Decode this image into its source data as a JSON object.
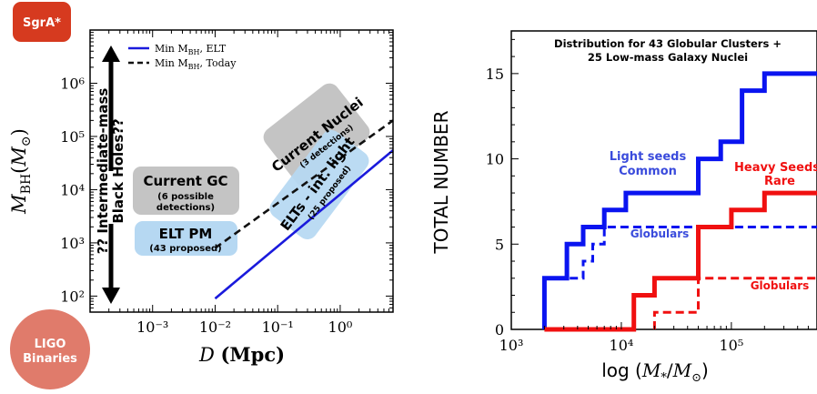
{
  "chart_data": [
    {
      "type": "line",
      "xlabel": "D (Mpc)",
      "ylabel": "M_BH(M_⊙)",
      "xscale": "log",
      "yscale": "log",
      "xlim": [
        0.0001,
        7
      ],
      "ylim": [
        50,
        10000000
      ],
      "xticks": [
        {
          "value": 0.001,
          "label": "10⁻³"
        },
        {
          "value": 0.01,
          "label": "10⁻²"
        },
        {
          "value": 0.1,
          "label": "10⁻¹"
        },
        {
          "value": 1,
          "label": "10⁰"
        }
      ],
      "yticks": [
        {
          "value": 100,
          "label": "10²"
        },
        {
          "value": 1000,
          "label": "10³"
        },
        {
          "value": 10000,
          "label": "10⁴"
        },
        {
          "value": 100000,
          "label": "10⁵"
        },
        {
          "value": 1000000,
          "label": "10⁶"
        }
      ],
      "legend_position": "top-right",
      "series": [
        {
          "name": "Min M_BH, ELT",
          "style": "solid",
          "color": "#1a1adc",
          "x": [
            0.01,
            7
          ],
          "y": [
            90,
            55000
          ]
        },
        {
          "name": "Min M_BH, Today",
          "style": "dashed",
          "color": "#111111",
          "x": [
            0.01,
            7
          ],
          "y": [
            800,
            200000
          ]
        }
      ],
      "annotations": {
        "vertical_arrow_text": "?? Intermediate-mass Black Holes??",
        "regions": [
          {
            "title": "Current GC",
            "subtitle": "(6 possible detections)"
          },
          {
            "title": "ELT PM",
            "subtitle": "(43 proposed)"
          },
          {
            "title": "Current Nuclei",
            "subtitle": "(3 detections)"
          },
          {
            "title": "ELTs - int. light",
            "subtitle": "(25 proposed)"
          }
        ],
        "badges": [
          {
            "label": "SgrA*",
            "color": "#d63a1f"
          },
          {
            "label": "LIGO Binaries",
            "color": "#e07b6b"
          }
        ]
      }
    },
    {
      "type": "line",
      "title": "Distribution for 43 Globular Clusters + 25 Low-mass Galaxy Nuclei",
      "xlabel": "log (M_*/M_⊙)",
      "ylabel": "TOTAL NUMBER",
      "xscale": "log",
      "xlim": [
        1000,
        600000
      ],
      "ylim": [
        0,
        17.5
      ],
      "xticks": [
        {
          "value": 1000,
          "label": "10³"
        },
        {
          "value": 10000,
          "label": "10⁴"
        },
        {
          "value": 100000,
          "label": "10⁵"
        }
      ],
      "yticks": [
        {
          "value": 0,
          "label": "0"
        },
        {
          "value": 5,
          "label": "5"
        },
        {
          "value": 10,
          "label": "10"
        },
        {
          "value": 15,
          "label": "15"
        }
      ],
      "series": [
        {
          "name": "Light seeds Common",
          "style": "solid",
          "color": "#0a14f0",
          "steps": [
            [
              2000,
              0
            ],
            [
              2000,
              3
            ],
            [
              3200,
              3
            ],
            [
              3200,
              5
            ],
            [
              4500,
              5
            ],
            [
              4500,
              6
            ],
            [
              7000,
              6
            ],
            [
              7000,
              7
            ],
            [
              11000,
              7
            ],
            [
              11000,
              8
            ],
            [
              50000,
              8
            ],
            [
              50000,
              10
            ],
            [
              80000,
              10
            ],
            [
              80000,
              11
            ],
            [
              125000,
              11
            ],
            [
              125000,
              14
            ],
            [
              200000,
              14
            ],
            [
              200000,
              15
            ],
            [
              600000,
              15
            ]
          ]
        },
        {
          "name": "Globulars",
          "style": "dashed",
          "color": "#0a14f0",
          "steps": [
            [
              2000,
              0
            ],
            [
              2000,
              3
            ],
            [
              4500,
              3
            ],
            [
              4500,
              4
            ],
            [
              5500,
              4
            ],
            [
              5500,
              5
            ],
            [
              7000,
              5
            ],
            [
              7000,
              6
            ],
            [
              600000,
              6
            ]
          ]
        },
        {
          "name": "Heavy Seeds Rare",
          "style": "solid",
          "color": "#f01010",
          "steps": [
            [
              2000,
              0
            ],
            [
              13000,
              0
            ],
            [
              13000,
              2
            ],
            [
              20000,
              2
            ],
            [
              20000,
              3
            ],
            [
              50000,
              3
            ],
            [
              50000,
              6
            ],
            [
              100000,
              6
            ],
            [
              100000,
              7
            ],
            [
              200000,
              7
            ],
            [
              200000,
              8
            ],
            [
              600000,
              8
            ]
          ]
        },
        {
          "name": "Globulars",
          "style": "dashed",
          "color": "#f01010",
          "steps": [
            [
              20000,
              0
            ],
            [
              20000,
              1
            ],
            [
              50000,
              1
            ],
            [
              50000,
              3
            ],
            [
              600000,
              3
            ]
          ]
        }
      ],
      "labels": [
        {
          "lines": [
            "Light seeds",
            "Common"
          ],
          "color": "#3a4bdc"
        },
        {
          "lines": [
            "Globulars"
          ],
          "color": "#3a4bdc"
        },
        {
          "lines": [
            "Heavy Seeds",
            "Rare"
          ],
          "color": "#f01010"
        },
        {
          "lines": [
            "Globulars"
          ],
          "color": "#f01010"
        }
      ]
    }
  ]
}
